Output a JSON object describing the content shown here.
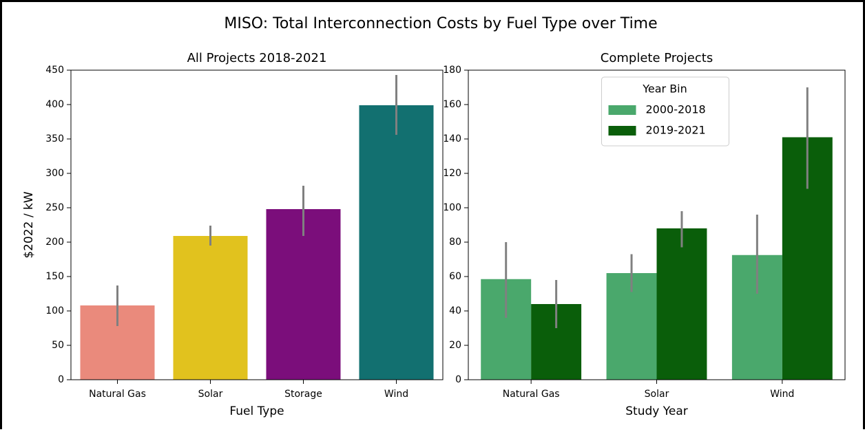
{
  "title": "MISO: Total Interconnection Costs by Fuel Type over Time",
  "chart_data": [
    {
      "type": "bar",
      "title": "All Projects 2018-2021",
      "x_label": "Fuel Type",
      "y_label": "$2022 / kW",
      "categories": [
        "Natural Gas",
        "Solar",
        "Storage",
        "Wind"
      ],
      "values": [
        108,
        209,
        248,
        399
      ],
      "ci_low": [
        78,
        195,
        209,
        356
      ],
      "ci_high": [
        137,
        224,
        282,
        443
      ],
      "colors": [
        "#ea8a7c",
        "#e1c21e",
        "#7b0e7b",
        "#127070"
      ],
      "ylim": [
        0,
        450
      ],
      "yticks": [
        0,
        50,
        100,
        150,
        200,
        250,
        300,
        350,
        400,
        450
      ]
    },
    {
      "type": "grouped_bar",
      "title": "Complete Projects",
      "x_label": "Study Year",
      "categories": [
        "Natural Gas",
        "Solar",
        "Wind"
      ],
      "legend_title": "Year Bin",
      "legend": "upper center",
      "series": [
        {
          "name": "2000-2018",
          "color": "#4aa86c",
          "values": [
            58.5,
            62,
            72.5
          ],
          "ci_low": [
            36,
            51,
            50
          ],
          "ci_high": [
            80,
            73,
            96
          ]
        },
        {
          "name": "2019-2021",
          "color": "#0a5e0a",
          "values": [
            44,
            88,
            141
          ],
          "ci_low": [
            30,
            77,
            111
          ],
          "ci_high": [
            58,
            98,
            170
          ]
        }
      ],
      "ylim": [
        0,
        180
      ],
      "yticks": [
        0,
        20,
        40,
        60,
        80,
        100,
        120,
        140,
        160,
        180
      ]
    }
  ]
}
